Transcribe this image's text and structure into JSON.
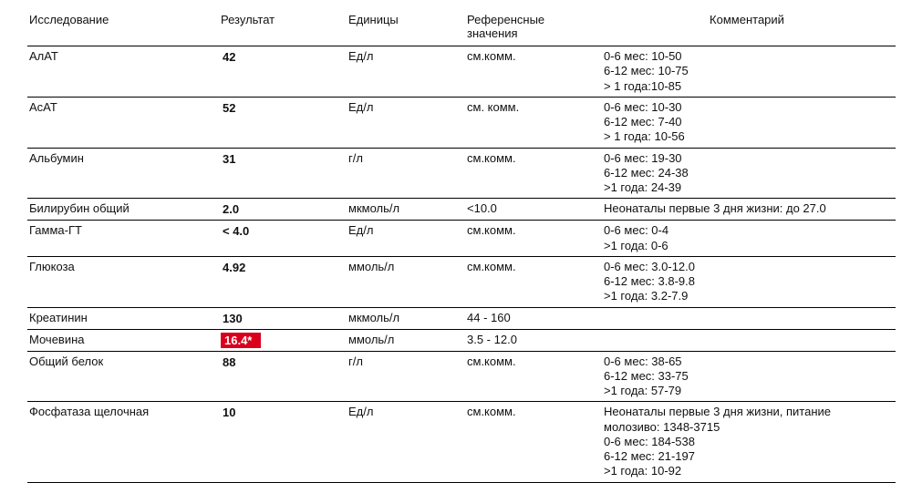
{
  "colors": {
    "flag_bg": "#d9001b",
    "flag_fg": "#ffffff",
    "rule": "#000000",
    "text": "#111111",
    "background": "#ffffff"
  },
  "fontsize": {
    "body": 13,
    "comment": 11.5
  },
  "columns": [
    "Исследование",
    "Результат",
    "Единицы",
    "Референсные значения",
    "Комментарий"
  ],
  "column_classes": [
    "c-test",
    "c-result",
    "c-units",
    "c-ref",
    "c-comment"
  ],
  "rows": [
    {
      "test": "АлАТ",
      "result": "42",
      "flag": false,
      "units": "Ед/л",
      "ref": "см.комм.",
      "comment": "0-6 мес: 10-50\n6-12 мес: 10-75\n> 1 года:10-85"
    },
    {
      "test": "АсАТ",
      "result": "52",
      "flag": false,
      "units": "Ед/л",
      "ref": "см. комм.",
      "comment": "0-6 мес: 10-30\n6-12 мес: 7-40\n> 1 года: 10-56"
    },
    {
      "test": "Альбумин",
      "result": "31",
      "flag": false,
      "units": "г/л",
      "ref": "см.комм.",
      "comment": "0-6 мес: 19-30\n6-12 мес: 24-38\n>1 года: 24-39"
    },
    {
      "test": "Билирубин общий",
      "result": "2.0",
      "flag": false,
      "units": "мкмоль/л",
      "ref": "<10.0",
      "comment": "Неонаталы первые 3 дня жизни: до 27.0"
    },
    {
      "test": "Гамма-ГТ",
      "result": "< 4.0",
      "flag": false,
      "units": "Ед/л",
      "ref": "см.комм.",
      "comment": "0-6 мес: 0-4\n>1 года: 0-6"
    },
    {
      "test": "Глюкоза",
      "result": "4.92",
      "flag": false,
      "units": "ммоль/л",
      "ref": "см.комм.",
      "comment": "0-6 мес: 3.0-12.0\n6-12 мес: 3.8-9.8\n>1 года: 3.2-7.9"
    },
    {
      "test": "Креатинин",
      "result": "130",
      "flag": false,
      "units": "мкмоль/л",
      "ref": "44 - 160",
      "comment": ""
    },
    {
      "test": "Мочевина",
      "result": "16.4*",
      "flag": true,
      "units": "ммоль/л",
      "ref": "3.5 - 12.0",
      "comment": ""
    },
    {
      "test": "Общий белок",
      "result": "88",
      "flag": false,
      "units": "г/л",
      "ref": "см.комм.",
      "comment": "0-6 мес: 38-65\n6-12 мес: 33-75\n>1 года: 57-79"
    },
    {
      "test": "Фосфатаза щелочная",
      "result": "10",
      "flag": false,
      "units": "Ед/л",
      "ref": "см.комм.",
      "comment": "Неонаталы первые 3 дня жизни, питание молозиво: 1348-3715\n0-6 мес: 184-538\n6-12 мес: 21-197\n>1 года: 10-92"
    }
  ]
}
